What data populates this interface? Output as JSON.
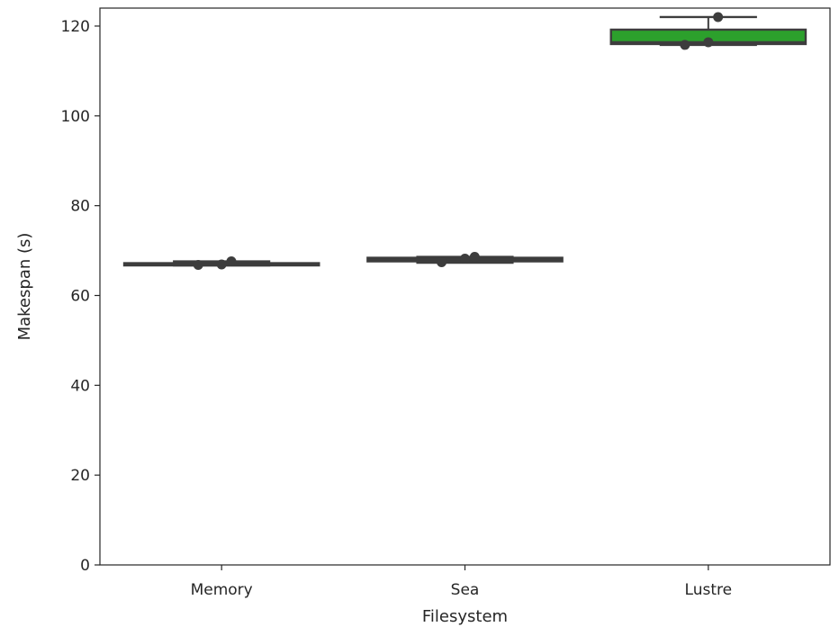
{
  "chart_data": {
    "type": "box",
    "title": "",
    "xlabel": "Filesystem",
    "ylabel": "Makespan (s)",
    "ylim": [
      0,
      124
    ],
    "yticks": [
      0,
      20,
      40,
      60,
      80,
      100,
      120
    ],
    "categories": [
      "Memory",
      "Sea",
      "Lustre"
    ],
    "grid": false,
    "legend": "none",
    "line_color": "#3d3d3d",
    "boxes": [
      {
        "category": "Memory",
        "whisker_low": 66.7,
        "q1": 66.7,
        "median": 66.9,
        "q3": 67.2,
        "whisker_high": 67.6,
        "points": [
          66.8,
          66.9,
          67.6
        ],
        "color": "#3d3d3d"
      },
      {
        "category": "Sea",
        "whisker_low": 67.3,
        "q1": 67.6,
        "median": 68.0,
        "q3": 68.4,
        "whisker_high": 68.6,
        "points": [
          67.4,
          68.2,
          68.6
        ],
        "color": "#3d3d3d"
      },
      {
        "category": "Lustre",
        "whisker_low": 115.8,
        "q1": 116.0,
        "median": 116.4,
        "q3": 119.2,
        "whisker_high": 122.0,
        "points": [
          115.8,
          116.4,
          122.0
        ],
        "color": "#2ca02c"
      }
    ]
  }
}
